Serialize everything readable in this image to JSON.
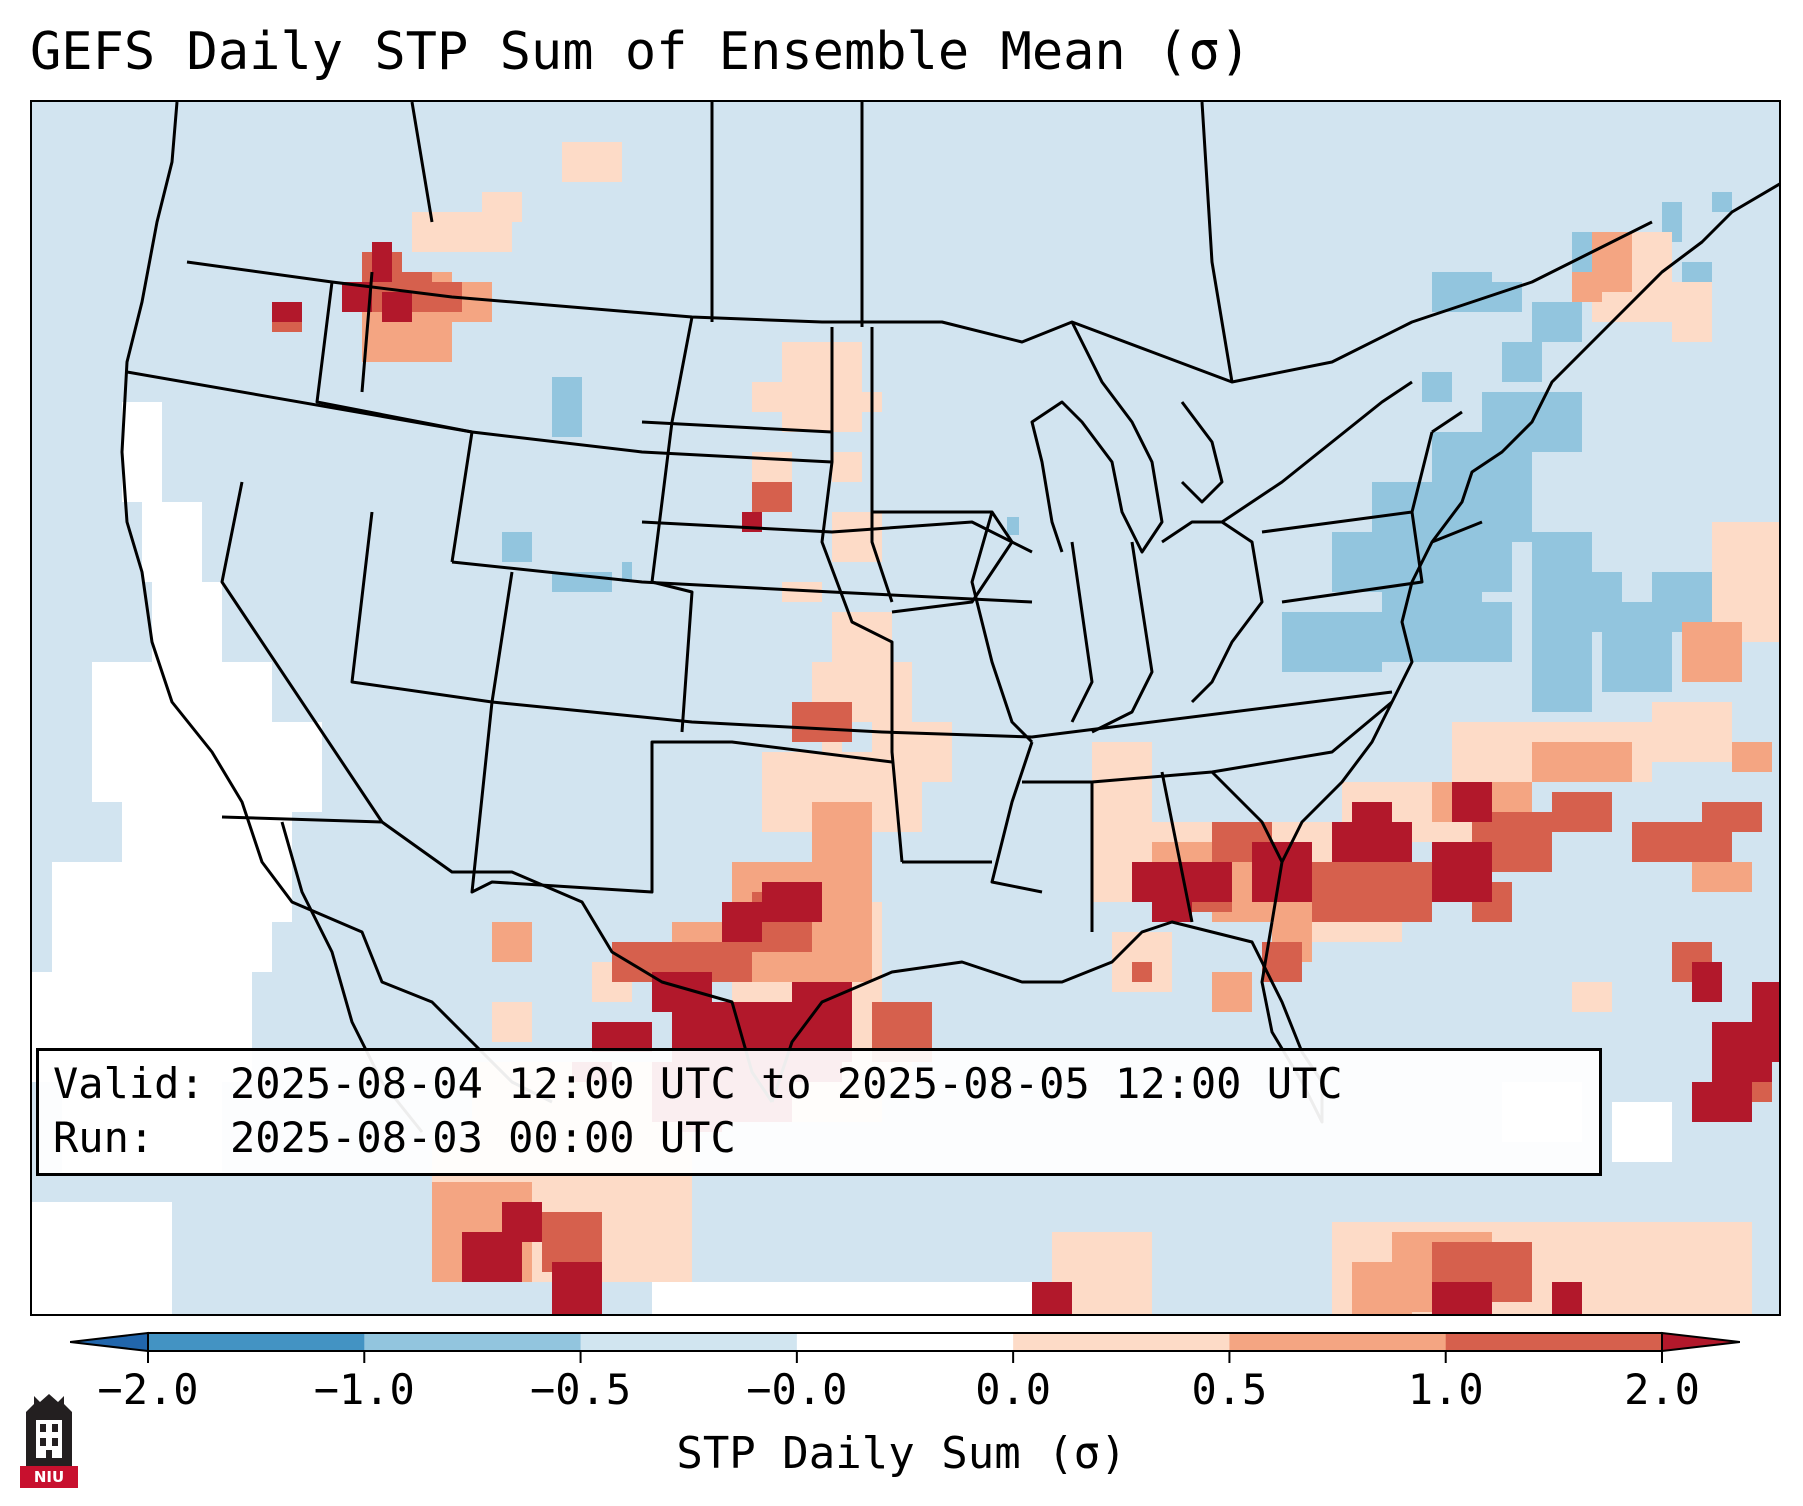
{
  "title": "GEFS Daily STP Sum of Ensemble Mean (σ)",
  "valid_line": "Valid: 2025-08-04 12:00 UTC to 2025-08-05 12:00 UTC",
  "run_line": "Run:   2025-08-03 00:00 UTC",
  "colorbar": {
    "label": "STP Daily Sum (σ)",
    "ticks": [
      "−2.0",
      "−1.0",
      "−0.5",
      "−0.0",
      "0.0",
      "0.5",
      "1.0",
      "2.0"
    ],
    "bins": [
      {
        "range": "< -2.0",
        "color": "#2166ac"
      },
      {
        "range": "-2.0 to -1.0",
        "color": "#4393c3"
      },
      {
        "range": "-1.0 to -0.5",
        "color": "#92c5de"
      },
      {
        "range": "-0.5 to -0.0",
        "color": "#d1e5f0"
      },
      {
        "range": "-0.0 to 0.0",
        "color": "#ffffff"
      },
      {
        "range": "0.0 to 0.5",
        "color": "#fddbc7"
      },
      {
        "range": "0.5 to 1.0",
        "color": "#f4a582"
      },
      {
        "range": "1.0 to 2.0",
        "color": "#d6604d"
      },
      {
        "range": "> 2.0",
        "color": "#b2182b"
      }
    ]
  },
  "map_colors": {
    "background": "#d2e4f0",
    "outline": "#000000"
  },
  "logo": {
    "text": "NIU",
    "color": "#c8102e"
  }
}
